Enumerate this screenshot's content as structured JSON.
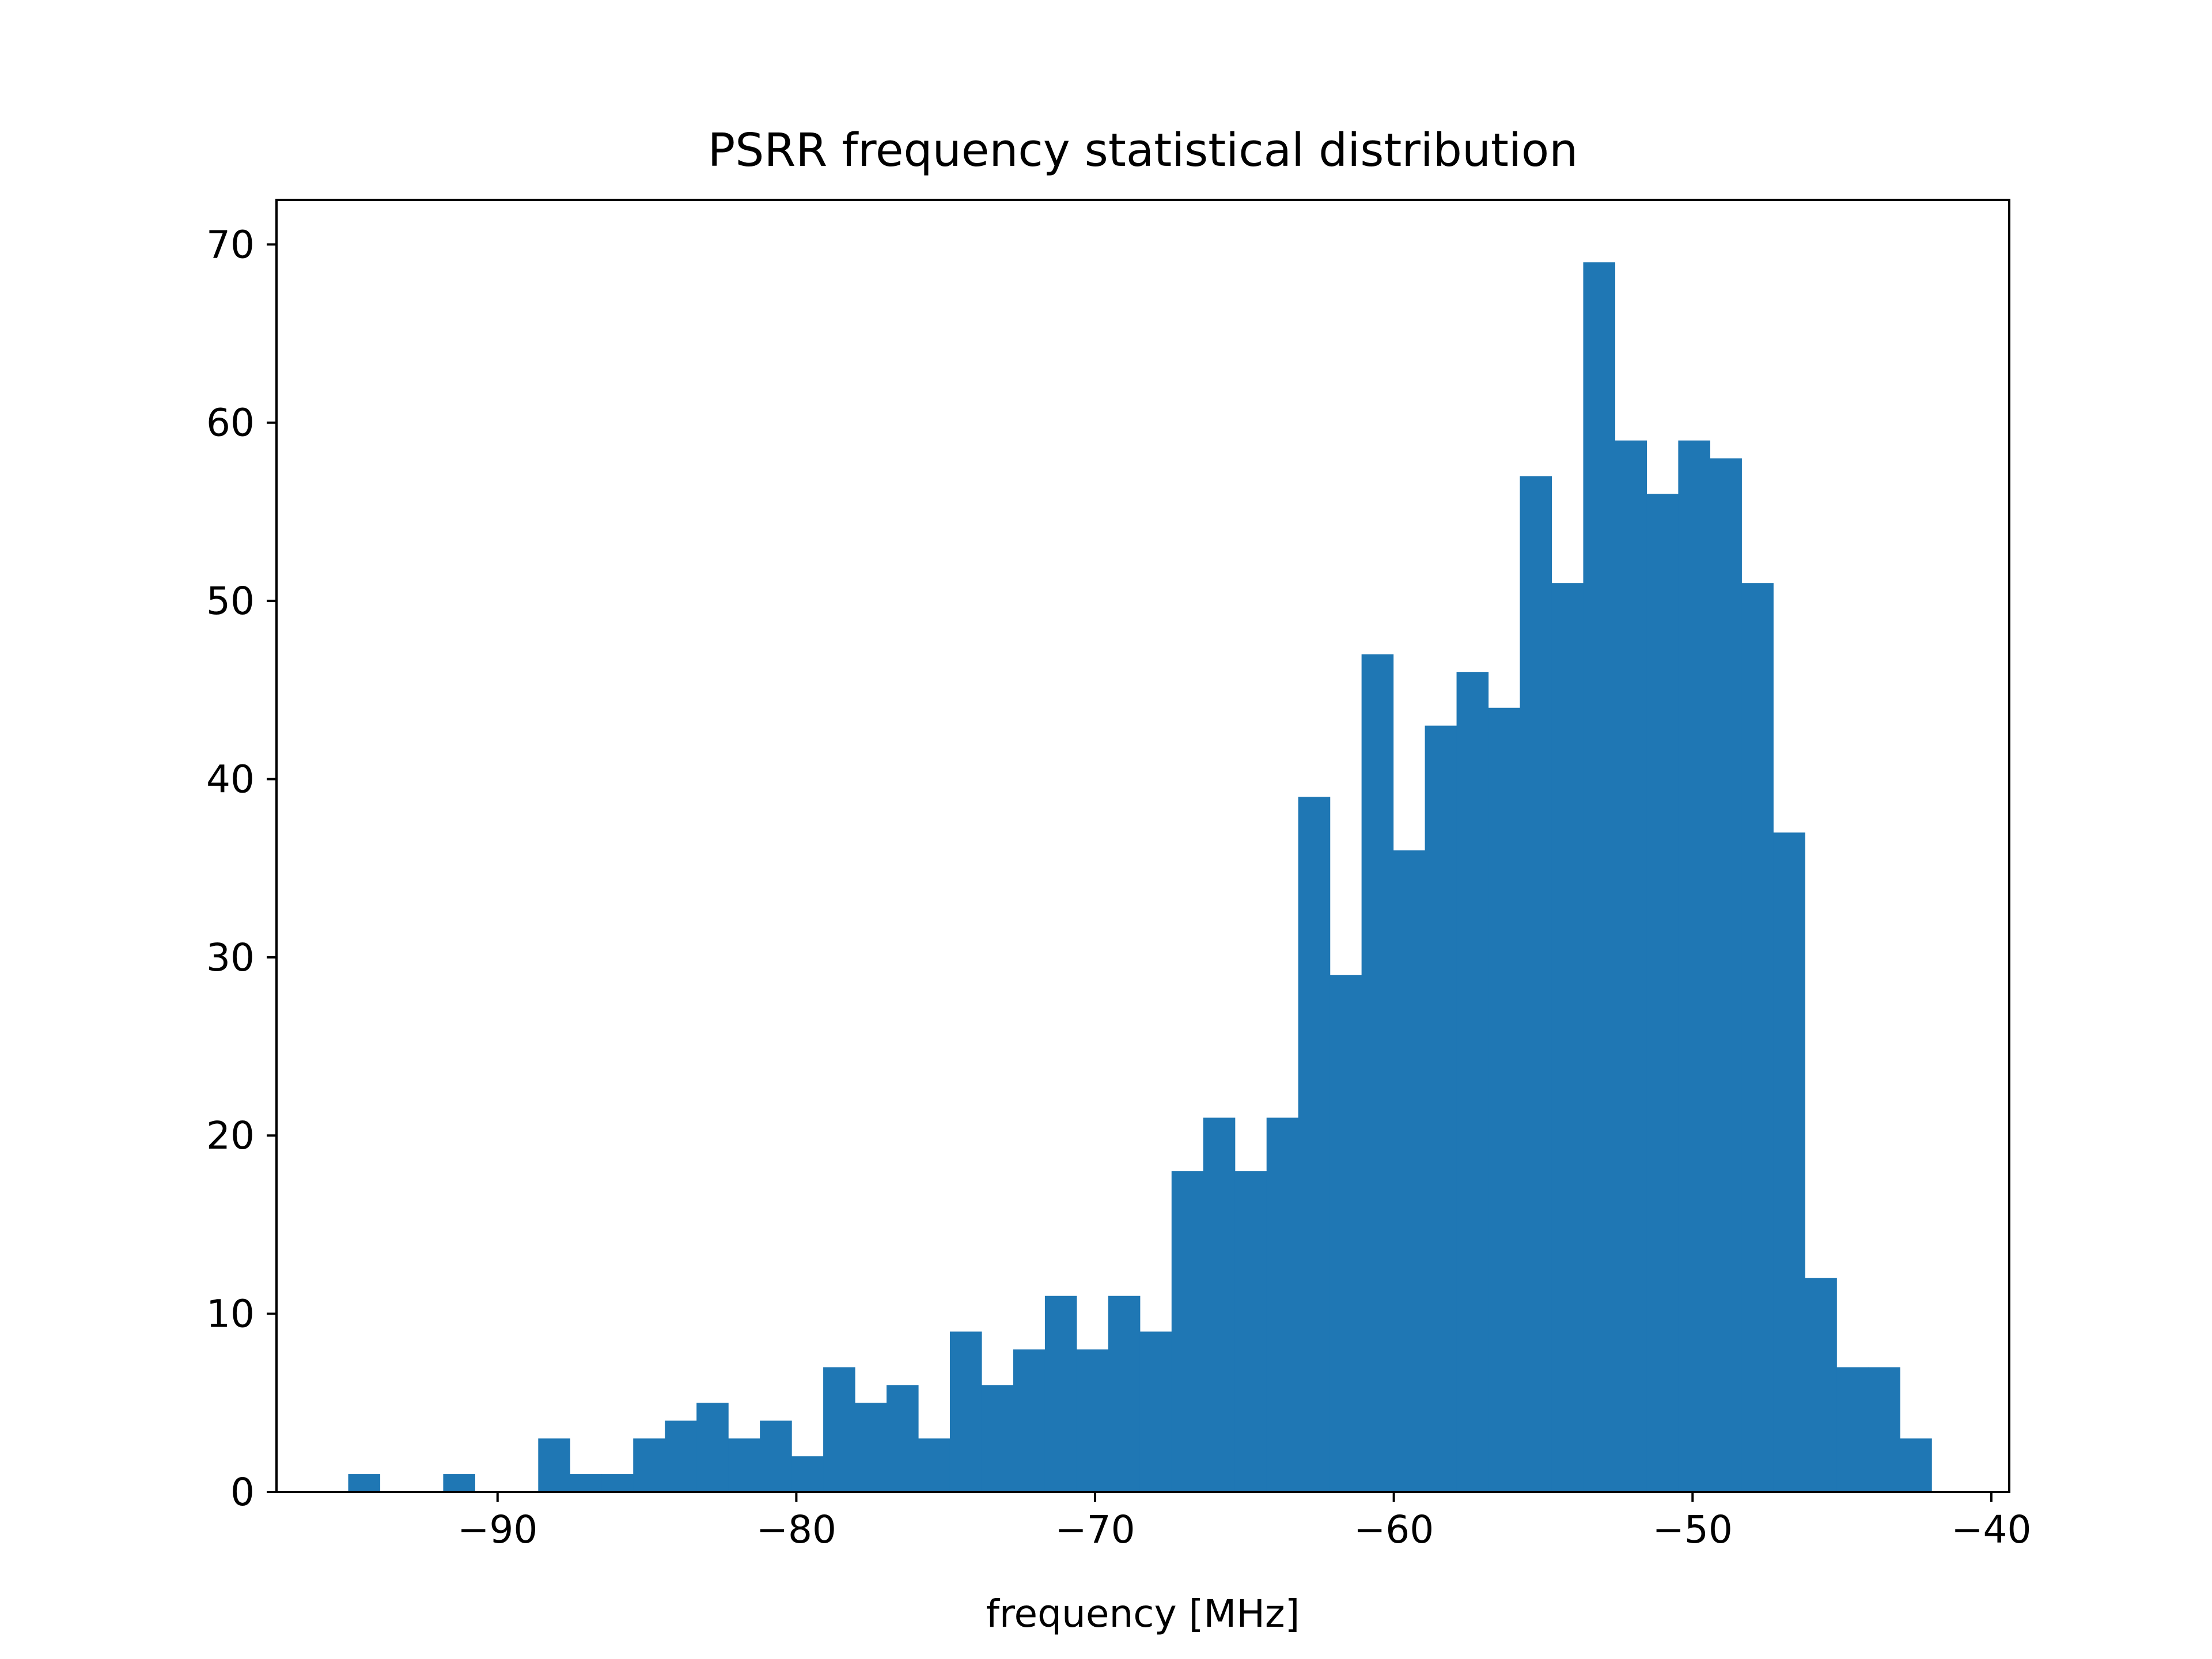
{
  "chart_data": {
    "type": "bar",
    "title": "PSRR frequency statistical distribution",
    "xlabel": "frequency [MHz]",
    "ylabel": "",
    "xlim": [
      -97.4,
      -39.4
    ],
    "ylim": [
      0,
      72.5
    ],
    "bin_edges_start": -95.0,
    "bin_width": 1.06,
    "values": [
      1,
      0,
      0,
      1,
      0,
      0,
      3,
      1,
      1,
      3,
      4,
      5,
      3,
      4,
      2,
      7,
      5,
      6,
      3,
      9,
      6,
      8,
      11,
      8,
      11,
      9,
      18,
      21,
      18,
      21,
      39,
      29,
      47,
      36,
      43,
      46,
      44,
      57,
      51,
      69,
      59,
      56,
      59,
      58,
      51,
      37,
      12,
      7,
      7,
      3
    ],
    "xticks": [
      -90,
      -80,
      -70,
      -60,
      -50,
      -40
    ],
    "xtick_labels": [
      "−90",
      "−80",
      "−70",
      "−60",
      "−50",
      "−40"
    ],
    "yticks": [
      0,
      10,
      20,
      30,
      40,
      50,
      60,
      70
    ],
    "ytick_labels": [
      "0",
      "10",
      "20",
      "30",
      "40",
      "50",
      "60",
      "70"
    ],
    "bar_color": "#1f77b4",
    "grid": false,
    "legend": "none"
  }
}
